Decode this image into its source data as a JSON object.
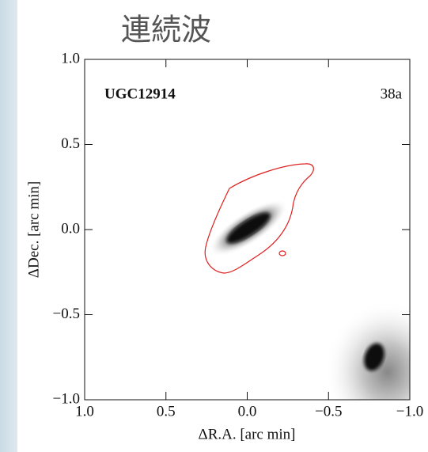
{
  "chart_data": {
    "type": "image",
    "title": "連続波",
    "object_label": "UGC12914",
    "panel_label": "38a",
    "xlabel": "ΔR.A. [arc min]",
    "ylabel": "ΔDec. [arc min]",
    "xlim": [
      1.0,
      -1.0
    ],
    "ylim": [
      -1.0,
      1.0
    ],
    "xticks": [
      {
        "value": 1.0,
        "label": "1.0"
      },
      {
        "value": 0.5,
        "label": "0.5"
      },
      {
        "value": 0.0,
        "label": "0.0"
      },
      {
        "value": -0.5,
        "label": "−0.5"
      },
      {
        "value": -1.0,
        "label": "−1.0"
      }
    ],
    "yticks": [
      {
        "value": -1.0,
        "label": "−1.0"
      },
      {
        "value": -0.5,
        "label": "−0.5"
      },
      {
        "value": 0.0,
        "label": "0.0"
      },
      {
        "value": 0.5,
        "label": "0.5"
      },
      {
        "value": 1.0,
        "label": "1.0"
      }
    ],
    "contour_color": "#e02020"
  }
}
